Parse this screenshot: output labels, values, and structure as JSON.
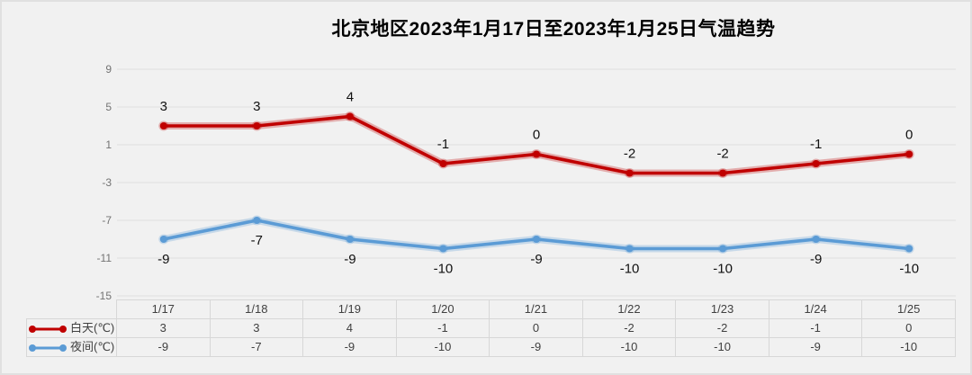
{
  "title": "北京地区2023年1月17日至2023年1月25日气温趋势",
  "chart_data": {
    "type": "line",
    "title": "北京地区2023年1月17日至2023年1月25日气温趋势",
    "categories": [
      "1/17",
      "1/18",
      "1/19",
      "1/20",
      "1/21",
      "1/22",
      "1/23",
      "1/24",
      "1/25"
    ],
    "series": [
      {
        "name": "白天(℃)",
        "values": [
          3,
          3,
          4,
          -1,
          0,
          -2,
          -2,
          -1,
          0
        ],
        "color": "#c00000",
        "label_position": "above"
      },
      {
        "name": "夜间(℃)",
        "values": [
          -9,
          -7,
          -9,
          -10,
          -9,
          -10,
          -10,
          -9,
          -10
        ],
        "color": "#5b9bd5",
        "label_position": "below"
      }
    ],
    "y_ticks": [
      9,
      5,
      1,
      -3,
      -7,
      -11,
      -15
    ],
    "ylim": [
      -15,
      9
    ],
    "xlabel": "",
    "ylabel": "",
    "grid": true,
    "legend_position": "data-table-left",
    "data_table": true
  },
  "colors": {
    "background": "#f1f1f1",
    "gridline": "#dedede",
    "axis_text": "#737373",
    "table_text": "#404040",
    "data_label_text": "#111111",
    "table_border": "#d7d7d7",
    "series_day": "#c00000",
    "series_night": "#5b9bd5"
  }
}
